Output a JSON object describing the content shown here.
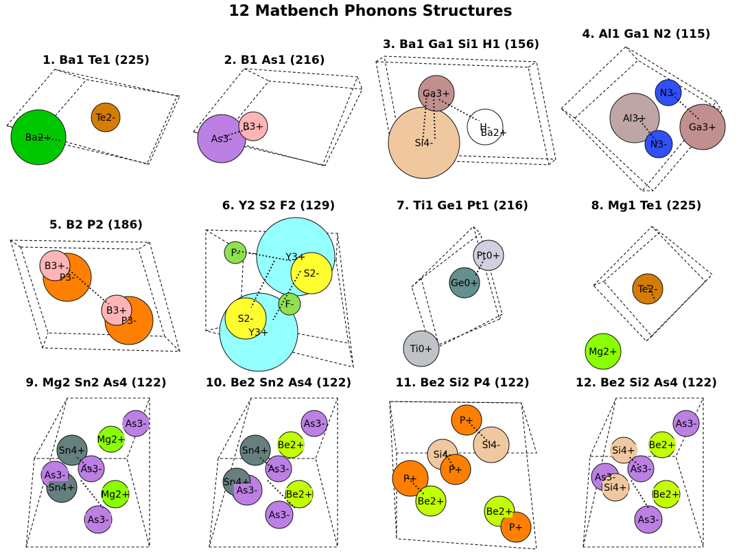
{
  "title": "12 Matbench Phonons Structures",
  "colors": {
    "Ba": "#00c800",
    "Te": "#d67c06",
    "B": "#ffb5b5",
    "As": "#bc80e4",
    "Si": "#f0c8a0",
    "Ga": "#c28f8f",
    "H": "#ffffff",
    "Al": "#bfa6a6",
    "N": "#3050f8",
    "P": "#ff8000",
    "Y": "#94ffff",
    "S": "#ffff30",
    "F": "#90e050",
    "Ti": "#bfc2c7",
    "Ge": "#668f8f",
    "Pt": "#d0d0e0",
    "Mg": "#8aff00",
    "Sn": "#668080",
    "Be": "#c2ff00"
  },
  "panels": [
    {
      "title": "1. Ba1 Te1 (225)",
      "atoms": [
        {
          "el": "Ba",
          "label": "Ba2+",
          "label_bg": false
        },
        {
          "el": "Te",
          "label": "Te2-",
          "label_bg": false
        }
      ]
    },
    {
      "title": "2. B1 As1 (216)",
      "atoms": [
        {
          "el": "As",
          "label": "As3-",
          "label_bg": false
        },
        {
          "el": "B",
          "label": "B3+",
          "label_bg": false
        }
      ]
    },
    {
      "title": "3. Ba1 Ga1 Si1 H1 (156)",
      "atoms": [
        {
          "el": "Si",
          "label": "Si4-",
          "label_bg": false
        },
        {
          "el": "Ga",
          "label": "Ga3+",
          "label_bg": false
        },
        {
          "el": "H",
          "label": "H-",
          "label_bg": true
        },
        {
          "el": "Ba",
          "label": "Ba2+",
          "label_bg": false
        }
      ]
    },
    {
      "title": "4. Al1 Ga1 N2 (115)",
      "atoms": [
        {
          "el": "N",
          "label": "N3-",
          "label_bg": false
        },
        {
          "el": "Al",
          "label": "Al3+",
          "label_bg": false
        },
        {
          "el": "Ga",
          "label": "Ga3+",
          "label_bg": false
        },
        {
          "el": "N",
          "label": "N3-",
          "label_bg": false
        }
      ]
    },
    {
      "title": "5. B2 P2 (186)",
      "atoms": [
        {
          "el": "B",
          "label": "B3+",
          "label_bg": true
        },
        {
          "el": "P",
          "label": "P3-",
          "label_bg": false
        },
        {
          "el": "B",
          "label": "B3+",
          "label_bg": true
        },
        {
          "el": "P",
          "label": "P3-",
          "label_bg": false
        }
      ]
    },
    {
      "title": "6. Y2 S2 F2 (129)",
      "atoms": [
        {
          "el": "Y",
          "label": "Y3+",
          "label_bg": false
        },
        {
          "el": "S",
          "label": "S2-",
          "label_bg": false
        },
        {
          "el": "F",
          "label": "F-",
          "label_bg": false
        },
        {
          "el": "Y",
          "label": "Y3+",
          "label_bg": false
        },
        {
          "el": "S",
          "label": "S2-",
          "label_bg": true
        },
        {
          "el": "F",
          "label": "F-",
          "label_bg": false
        }
      ]
    },
    {
      "title": "7. Ti1 Ge1 Pt1 (216)",
      "atoms": [
        {
          "el": "Pt",
          "label": "Pt0+",
          "label_bg": false
        },
        {
          "el": "Ge",
          "label": "Ge0+",
          "label_bg": true
        },
        {
          "el": "Ti",
          "label": "Ti0+",
          "label_bg": false
        }
      ]
    },
    {
      "title": "8. Mg1 Te1 (225)",
      "atoms": [
        {
          "el": "Te",
          "label": "Te2-",
          "label_bg": false
        },
        {
          "el": "Mg",
          "label": "Mg2+",
          "label_bg": true
        }
      ]
    },
    {
      "title": "9. Mg2 Sn2 As4 (122)",
      "atoms": [
        {
          "el": "As",
          "label": "As3-",
          "label_bg": true
        },
        {
          "el": "Sn",
          "label": "Sn4+",
          "label_bg": true
        },
        {
          "el": "Mg",
          "label": "Mg2+",
          "label_bg": true
        },
        {
          "el": "As",
          "label": "As3-",
          "label_bg": false
        },
        {
          "el": "As",
          "label": "As3-",
          "label_bg": true
        },
        {
          "el": "Sn",
          "label": "Sn4+",
          "label_bg": true
        },
        {
          "el": "Mg",
          "label": "Mg2+",
          "label_bg": true
        },
        {
          "el": "As",
          "label": "As3-",
          "label_bg": true
        }
      ]
    },
    {
      "title": "10. Be2 Sn2 As4 (122)",
      "atoms": [
        {
          "el": "As",
          "label": "As3-",
          "label_bg": false
        },
        {
          "el": "Be",
          "label": "Be2+",
          "label_bg": true
        },
        {
          "el": "Sn",
          "label": "Sn4+",
          "label_bg": true
        },
        {
          "el": "As",
          "label": "As3-",
          "label_bg": false
        },
        {
          "el": "Sn",
          "label": "Sn4+",
          "label_bg": false
        },
        {
          "el": "As",
          "label": "As3-",
          "label_bg": true
        },
        {
          "el": "Be",
          "label": "Be2+",
          "label_bg": true
        },
        {
          "el": "As",
          "label": "As3-",
          "label_bg": false
        }
      ]
    },
    {
      "title": "11. Be2 Si2 P4 (122)",
      "atoms": [
        {
          "el": "P",
          "label": "P+",
          "label_bg": false
        },
        {
          "el": "Si",
          "label": "Si4-",
          "label_bg": false
        },
        {
          "el": "Si",
          "label": "Si4-",
          "label_bg": false
        },
        {
          "el": "P",
          "label": "P+",
          "label_bg": false
        },
        {
          "el": "P",
          "label": "P+",
          "label_bg": false
        },
        {
          "el": "Be",
          "label": "Be2+",
          "label_bg": true
        },
        {
          "el": "Be",
          "label": "Be2+",
          "label_bg": true
        },
        {
          "el": "P",
          "label": "P+",
          "label_bg": false
        }
      ]
    },
    {
      "title": "12. Be2 Si2 As4 (122)",
      "atoms": [
        {
          "el": "As",
          "label": "As3-",
          "label_bg": false
        },
        {
          "el": "Si",
          "label": "Si4+",
          "label_bg": true
        },
        {
          "el": "Be",
          "label": "Be2+",
          "label_bg": true
        },
        {
          "el": "As",
          "label": "As3-",
          "label_bg": false
        },
        {
          "el": "As",
          "label": "As3-",
          "label_bg": false
        },
        {
          "el": "Si",
          "label": "Si4+",
          "label_bg": true
        },
        {
          "el": "Be",
          "label": "Be2+",
          "label_bg": true
        },
        {
          "el": "As",
          "label": "As3-",
          "label_bg": false
        }
      ]
    }
  ]
}
